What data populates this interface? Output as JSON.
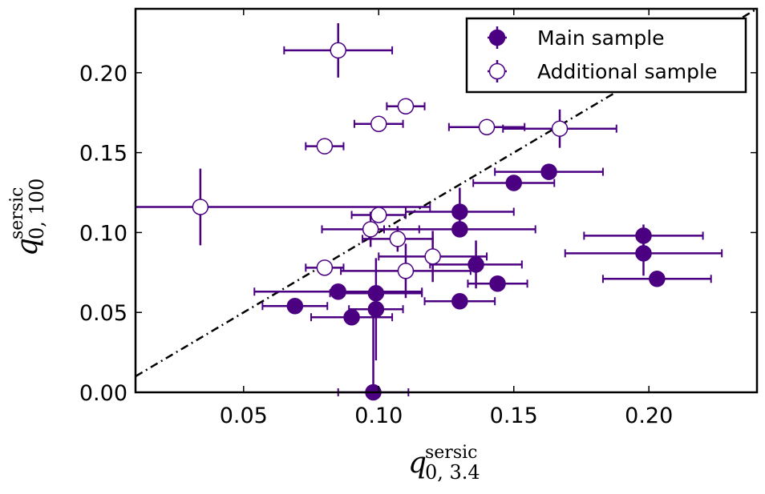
{
  "chart_data": {
    "type": "scatter",
    "title": "",
    "xlabel": {
      "symbol": "q",
      "sub": "0, 3.4",
      "sup": "sersic"
    },
    "ylabel": {
      "symbol": "q",
      "sub": "0, 100",
      "sup": "sersic"
    },
    "xlim": [
      0.01,
      0.24
    ],
    "ylim": [
      0.0,
      0.24
    ],
    "xticks": [
      {
        "value": 0.05,
        "label": "0.05"
      },
      {
        "value": 0.1,
        "label": "0.10"
      },
      {
        "value": 0.15,
        "label": "0.15"
      },
      {
        "value": 0.2,
        "label": "0.20"
      }
    ],
    "yticks": [
      {
        "value": 0.0,
        "label": "0.00"
      },
      {
        "value": 0.05,
        "label": "0.05"
      },
      {
        "value": 0.1,
        "label": "0.10"
      },
      {
        "value": 0.15,
        "label": "0.15"
      },
      {
        "value": 0.2,
        "label": "0.20"
      }
    ],
    "grid": false,
    "legend_position": "top-right",
    "reference_line": {
      "style": "dash-dot",
      "color": "#000000",
      "x": [
        0.01,
        0.24
      ],
      "y": [
        0.01,
        0.24
      ]
    },
    "color": "#4b0082",
    "series": [
      {
        "name": "Main sample",
        "marker": "filled-circle",
        "points": [
          {
            "x": 0.069,
            "y": 0.054,
            "xerr": 0.012,
            "yerr": 0.004
          },
          {
            "x": 0.085,
            "y": 0.063,
            "xerr": 0.031,
            "yerr": 0.004
          },
          {
            "x": 0.09,
            "y": 0.047,
            "xerr": 0.015,
            "yerr": 0.004
          },
          {
            "x": 0.099,
            "y": 0.062,
            "xerr": 0.017,
            "yerr": 0.005
          },
          {
            "x": 0.099,
            "y": 0.052,
            "xerr": 0.01,
            "yerr": 0.032
          },
          {
            "x": 0.098,
            "y": 0.0,
            "xerr": 0.013,
            "yerr": 0.053
          },
          {
            "x": 0.13,
            "y": 0.113,
            "xerr": 0.02,
            "yerr": 0.015
          },
          {
            "x": 0.13,
            "y": 0.102,
            "xerr": 0.028,
            "yerr": 0.005
          },
          {
            "x": 0.13,
            "y": 0.057,
            "xerr": 0.013,
            "yerr": 0.003
          },
          {
            "x": 0.136,
            "y": 0.08,
            "xerr": 0.017,
            "yerr": 0.015
          },
          {
            "x": 0.144,
            "y": 0.068,
            "xerr": 0.011,
            "yerr": 0.003
          },
          {
            "x": 0.15,
            "y": 0.131,
            "xerr": 0.015,
            "yerr": 0.003
          },
          {
            "x": 0.163,
            "y": 0.138,
            "xerr": 0.02,
            "yerr": 0.003
          },
          {
            "x": 0.198,
            "y": 0.098,
            "xerr": 0.022,
            "yerr": 0.007
          },
          {
            "x": 0.198,
            "y": 0.087,
            "xerr": 0.029,
            "yerr": 0.014
          },
          {
            "x": 0.203,
            "y": 0.071,
            "xerr": 0.02,
            "yerr": 0.003
          }
        ]
      },
      {
        "name": "Additional sample",
        "marker": "open-circle",
        "points": [
          {
            "x": 0.034,
            "y": 0.116,
            "xerr": 0.085,
            "yerr": 0.024
          },
          {
            "x": 0.08,
            "y": 0.078,
            "xerr": 0.007,
            "yerr": 0.002
          },
          {
            "x": 0.08,
            "y": 0.154,
            "xerr": 0.007,
            "yerr": 0.003
          },
          {
            "x": 0.085,
            "y": 0.214,
            "xerr": 0.02,
            "yerr": 0.017
          },
          {
            "x": 0.097,
            "y": 0.102,
            "xerr": 0.018,
            "yerr": 0.011
          },
          {
            "x": 0.1,
            "y": 0.111,
            "xerr": 0.01,
            "yerr": 0.004
          },
          {
            "x": 0.1,
            "y": 0.168,
            "xerr": 0.009,
            "yerr": 0.003
          },
          {
            "x": 0.107,
            "y": 0.096,
            "xerr": 0.013,
            "yerr": 0.008
          },
          {
            "x": 0.11,
            "y": 0.179,
            "xerr": 0.007,
            "yerr": 0.002
          },
          {
            "x": 0.11,
            "y": 0.076,
            "xerr": 0.024,
            "yerr": 0.017
          },
          {
            "x": 0.12,
            "y": 0.085,
            "xerr": 0.02,
            "yerr": 0.016
          },
          {
            "x": 0.14,
            "y": 0.166,
            "xerr": 0.014,
            "yerr": 0.003
          },
          {
            "x": 0.167,
            "y": 0.165,
            "xerr": 0.021,
            "yerr": 0.012
          }
        ]
      }
    ]
  }
}
